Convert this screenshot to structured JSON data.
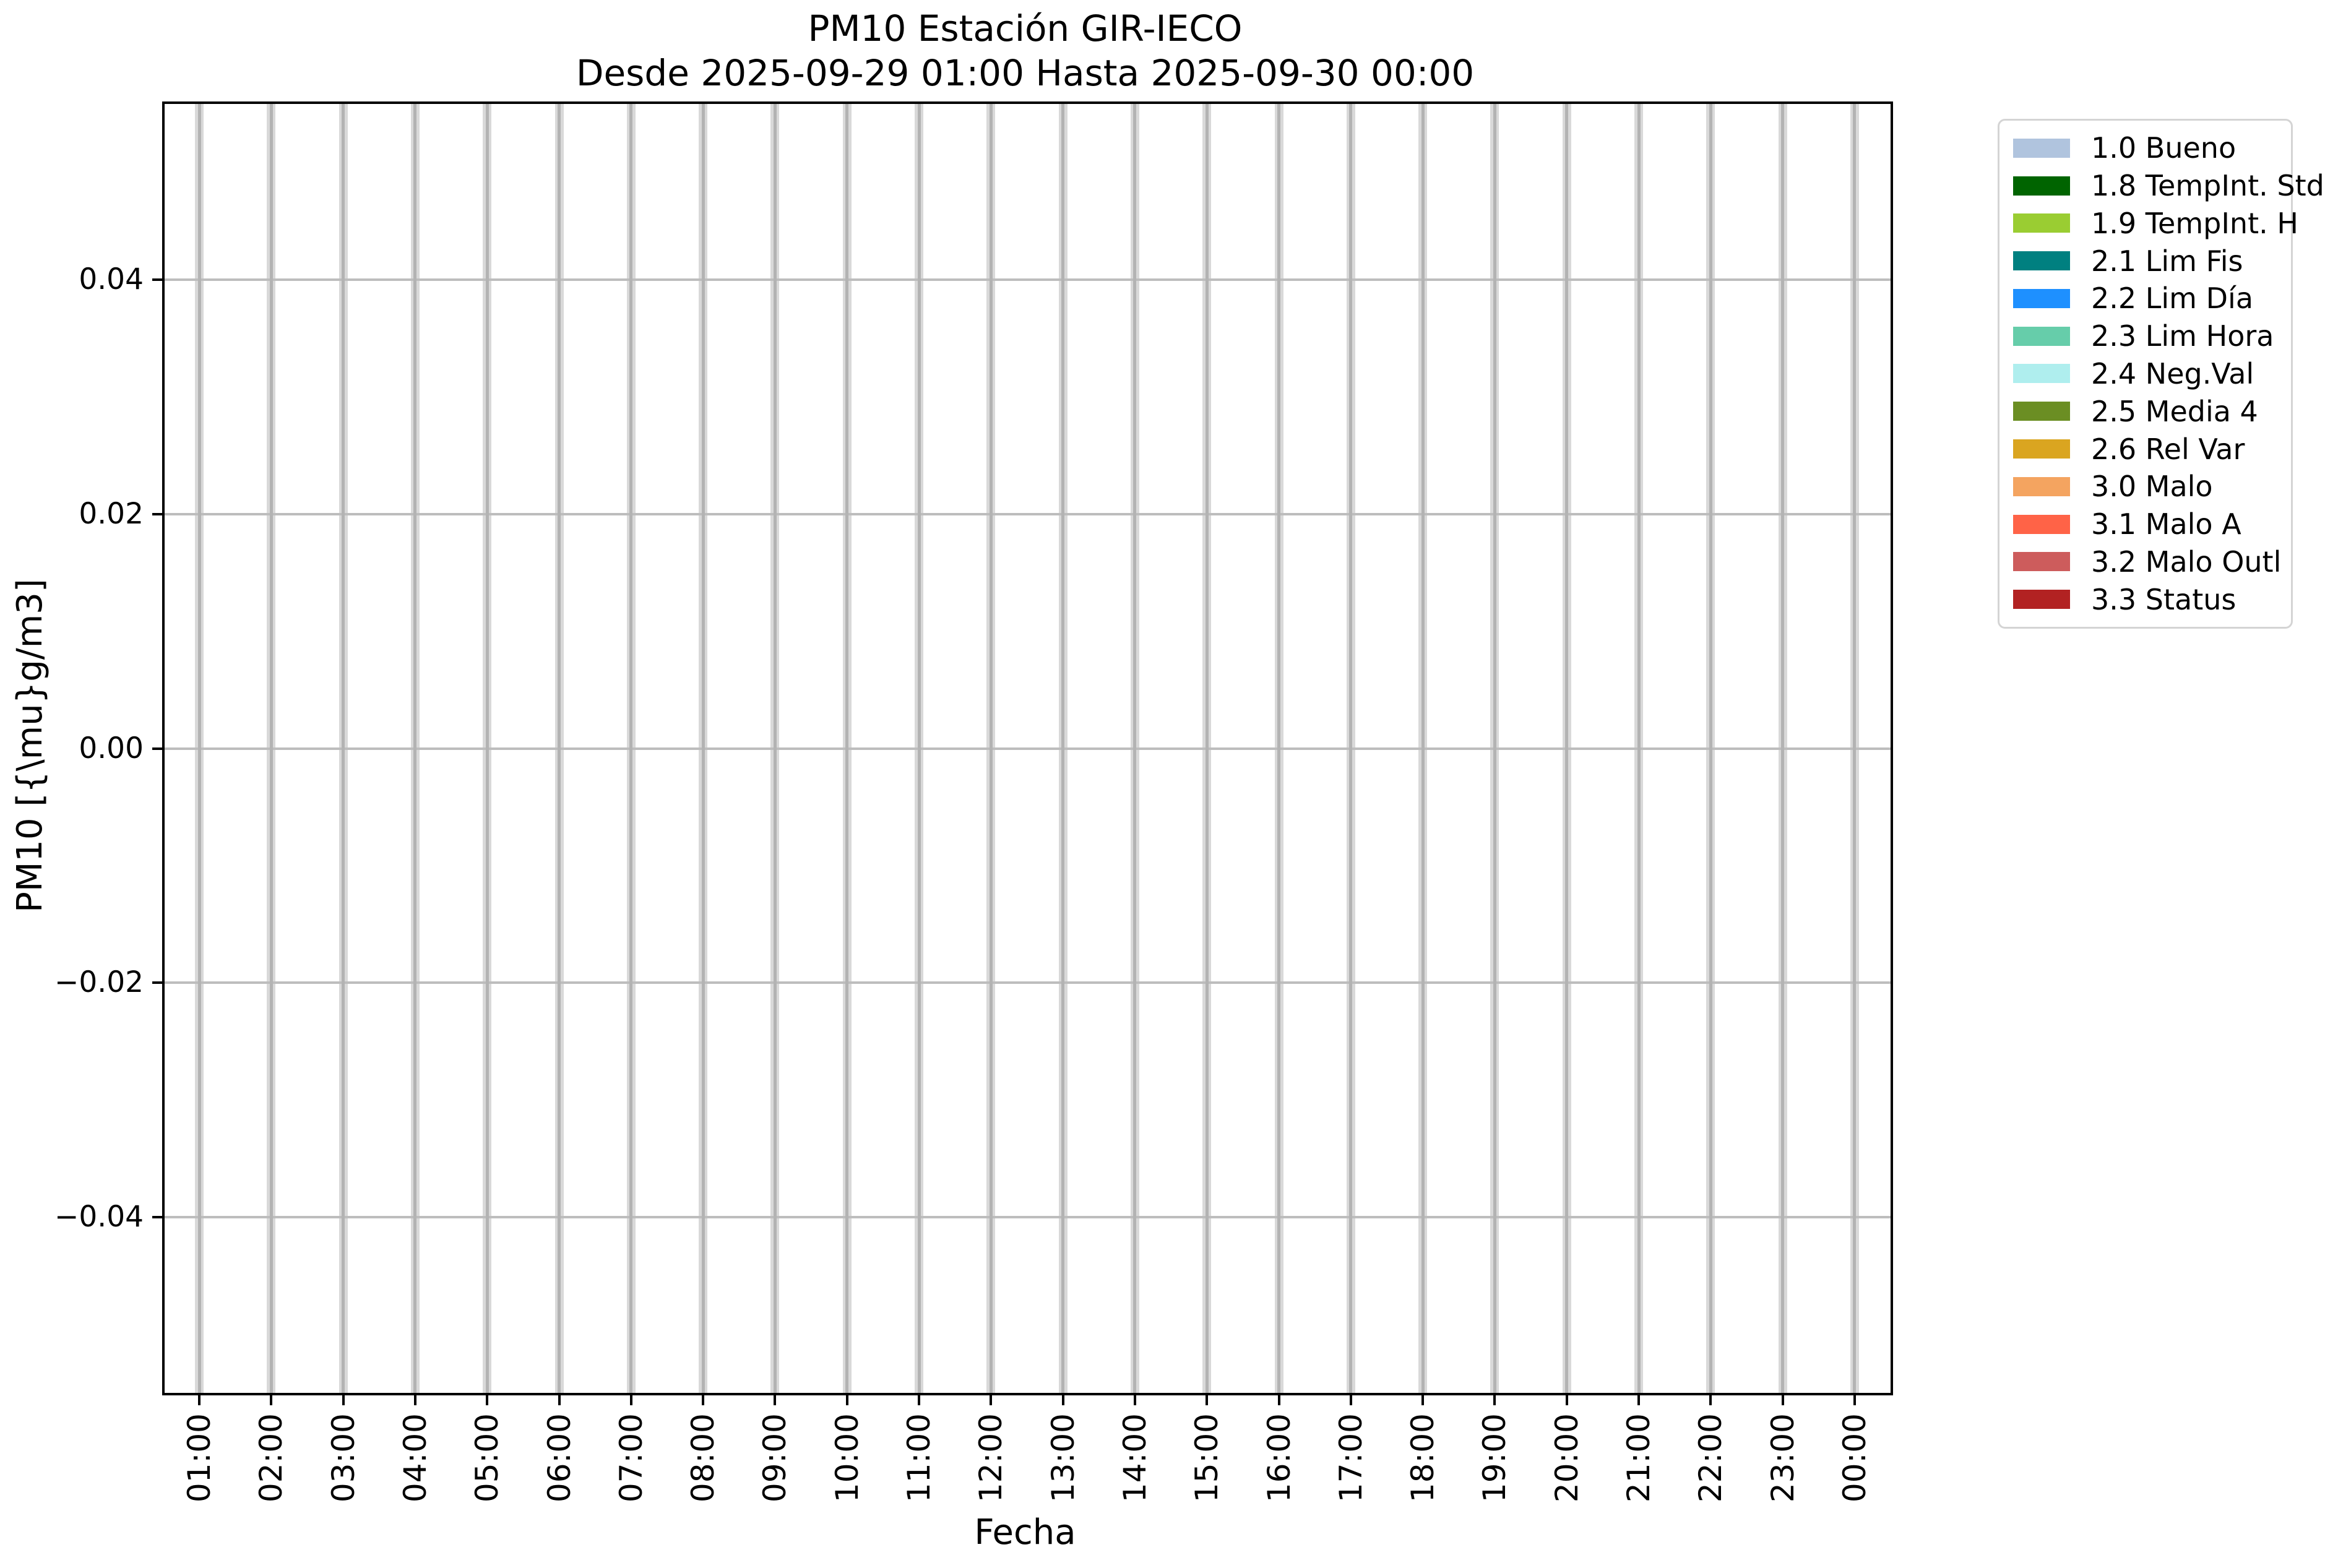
{
  "chart_data": {
    "type": "bar",
    "title": "PM10 Estación GIR-IECO",
    "subtitle": "Desde 2025-09-29 01:00 Hasta 2025-09-30 00:00",
    "xlabel": "Fecha",
    "ylabel": "PM10 [{\\mu}g/m3]",
    "categories": [
      "01:00",
      "02:00",
      "03:00",
      "04:00",
      "05:00",
      "06:00",
      "07:00",
      "08:00",
      "09:00",
      "10:00",
      "11:00",
      "12:00",
      "13:00",
      "14:00",
      "15:00",
      "16:00",
      "17:00",
      "18:00",
      "19:00",
      "20:00",
      "21:00",
      "22:00",
      "23:00",
      "00:00"
    ],
    "series": [],
    "y_tick_labels": [
      "0.04",
      "0.02",
      "0.00",
      "−0.02",
      "−0.04"
    ],
    "y_tick_values": [
      0.04,
      0.02,
      0.0,
      -0.02,
      -0.04
    ],
    "ylim": [
      -0.055,
      0.055
    ],
    "grid": true,
    "legend_position": "outside right top",
    "legend": [
      {
        "label": "1.0 Bueno",
        "color": "#B0C4DE"
      },
      {
        "label": "1.8 TempInt. Std",
        "color": "#006400"
      },
      {
        "label": "1.9 TempInt. H",
        "color": "#9ACD32"
      },
      {
        "label": "2.1 Lim Fis",
        "color": "#008080"
      },
      {
        "label": "2.2 Lim Día",
        "color": "#1E90FF"
      },
      {
        "label": "2.3 Lim Hora",
        "color": "#66CDAA"
      },
      {
        "label": "2.4 Neg.Val",
        "color": "#AFEEEE"
      },
      {
        "label": "2.5 Media 4",
        "color": "#6B8E23"
      },
      {
        "label": "2.6 Rel Var",
        "color": "#DAA520"
      },
      {
        "label": "3.0 Malo",
        "color": "#F4A460"
      },
      {
        "label": "3.1 Malo A",
        "color": "#FF6347"
      },
      {
        "label": "3.2 Malo Outl",
        "color": "#CD5C5C"
      },
      {
        "label": "3.3 Status",
        "color": "#B22222"
      }
    ],
    "colors": {
      "vgrid_band": "#d9d9d9",
      "vgrid_line": "#b3b3b3",
      "hgrid_line": "#bdbdbd",
      "spine": "#000000",
      "legend_border": "#d4d4d4",
      "background": "#ffffff"
    }
  }
}
